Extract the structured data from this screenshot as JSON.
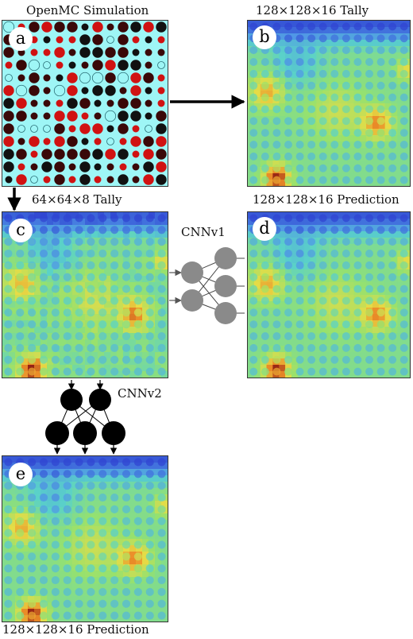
{
  "titles": {
    "a": "OpenMC Simulation",
    "b": "128×128×16 Tally",
    "c": "64×64×8 Tally",
    "d": "128×128×16 Prediction",
    "e": "128×128×16 Prediction"
  },
  "badges": {
    "a": "a",
    "b": "b",
    "c": "c",
    "d": "d",
    "e": "e"
  },
  "networks": {
    "cnn1": "CNNv1",
    "cnn2": "CNNv2"
  },
  "colors": {
    "geometry_bg": "#9ef6f6",
    "pin_red": "#d01212",
    "pin_dark": "#3a0808",
    "pin_black": "#111111",
    "cnn1_node": "#8a8a8a",
    "cnn2_node": "#000000",
    "heat_low": "#3a5bd9",
    "heat_mid": "#66d4a0",
    "heat_high": "#a8281a"
  }
}
